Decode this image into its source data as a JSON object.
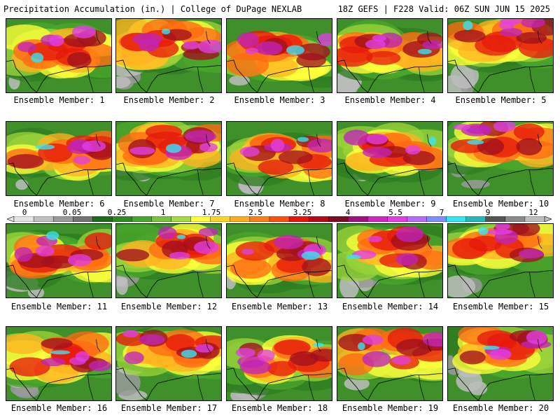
{
  "header": {
    "left_title": "Precipitation Accumulation (in.) | College of DuPage NEXLAB",
    "right_title": "18Z GEFS | F228 Valid: 06Z SUN JUN 15 2025"
  },
  "members": [
    {
      "label": "Ensemble Member: 1"
    },
    {
      "label": "Ensemble Member: 2"
    },
    {
      "label": "Ensemble Member: 3"
    },
    {
      "label": "Ensemble Member: 4"
    },
    {
      "label": "Ensemble Member: 5"
    },
    {
      "label": "Ensemble Member: 6"
    },
    {
      "label": "Ensemble Member: 7"
    },
    {
      "label": "Ensemble Member: 8"
    },
    {
      "label": "Ensemble Member: 9"
    },
    {
      "label": "Ensemble Member: 10"
    },
    {
      "label": "Ensemble Member: 11"
    },
    {
      "label": "Ensemble Member: 12"
    },
    {
      "label": "Ensemble Member: 13"
    },
    {
      "label": "Ensemble Member: 14"
    },
    {
      "label": "Ensemble Member: 15"
    },
    {
      "label": "Ensemble Member: 16"
    },
    {
      "label": "Ensemble Member: 17"
    },
    {
      "label": "Ensemble Member: 18"
    },
    {
      "label": "Ensemble Member: 19"
    },
    {
      "label": "Ensemble Member: 20"
    }
  ],
  "colorbar": {
    "ticks": [
      "0",
      "0.05",
      "0.25",
      "1",
      "1.75",
      "2.5",
      "3.25",
      "4",
      "5.5",
      "7",
      "9",
      "12"
    ],
    "colors": [
      "#e4e4e4",
      "#c0c0c0",
      "#9a9a9a",
      "#737373",
      "#1e6b1e",
      "#2e8b24",
      "#48a52e",
      "#76c43a",
      "#a6d840",
      "#ffff3a",
      "#ffd42a",
      "#ffaa1f",
      "#ff7f15",
      "#ff4f10",
      "#e8140c",
      "#b80a16",
      "#7d0a25",
      "#a0117a",
      "#cc28c0",
      "#e33de6",
      "#b86aff",
      "#7d8cff",
      "#2fe7f0",
      "#23b9b9",
      "#555555",
      "#8a8a8a",
      "#bdbdbd"
    ]
  }
}
